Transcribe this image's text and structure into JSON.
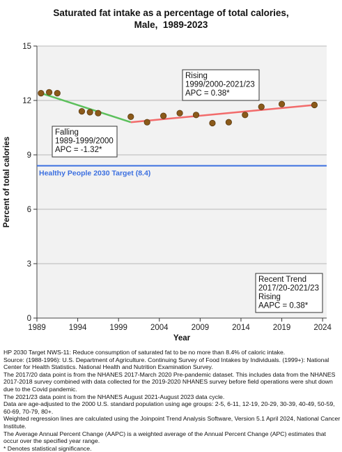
{
  "chart_data": {
    "type": "line",
    "title": [
      "Saturated fat intake as a percentage of total calories,",
      "Male,  1989-2023"
    ],
    "xlabel": "Year",
    "ylabel": "Percent of total calories",
    "xlim": [
      1989,
      2024.5
    ],
    "ylim": [
      0,
      15
    ],
    "xticks": [
      1989,
      1994,
      1999,
      2004,
      2009,
      2014,
      2019,
      2024
    ],
    "yticks": [
      0,
      3,
      6,
      9,
      12,
      15
    ],
    "grid": true,
    "points": [
      {
        "x": 1989.5,
        "y": 12.4
      },
      {
        "x": 1990.5,
        "y": 12.45
      },
      {
        "x": 1991.5,
        "y": 12.4
      },
      {
        "x": 1994.5,
        "y": 11.4
      },
      {
        "x": 1995.5,
        "y": 11.35
      },
      {
        "x": 1996.5,
        "y": 11.3
      },
      {
        "x": 2000.5,
        "y": 11.1
      },
      {
        "x": 2002.5,
        "y": 10.8
      },
      {
        "x": 2004.5,
        "y": 11.15
      },
      {
        "x": 2006.5,
        "y": 11.3
      },
      {
        "x": 2008.5,
        "y": 11.2
      },
      {
        "x": 2010.5,
        "y": 10.75
      },
      {
        "x": 2012.5,
        "y": 10.8
      },
      {
        "x": 2014.5,
        "y": 11.2
      },
      {
        "x": 2016.5,
        "y": 11.65
      },
      {
        "x": 2019,
        "y": 11.8
      },
      {
        "x": 2023,
        "y": 11.75
      }
    ],
    "trend_segments": [
      {
        "color": "#5cc05c",
        "points": [
          {
            "x": 1989.5,
            "y": 12.4
          },
          {
            "x": 2000.5,
            "y": 10.8
          }
        ]
      },
      {
        "color": "#f26b6b",
        "points": [
          {
            "x": 2000.5,
            "y": 10.8
          },
          {
            "x": 2023,
            "y": 11.75
          }
        ]
      }
    ],
    "target": {
      "value": 8.4,
      "label": "Healthy People 2030 Target (8.4)",
      "color": "#3b6fe0"
    },
    "annotations": [
      {
        "lines": [
          "Falling",
          "1989-1999/2000",
          "APC = -1.32*"
        ]
      },
      {
        "lines": [
          "Rising",
          "1999/2000-2021/23",
          "APC =  0.38*"
        ]
      },
      {
        "lines": [
          "Recent Trend",
          "2017/20-2021/23",
          "Rising",
          "AAPC =  0.38*"
        ]
      }
    ],
    "colors": {
      "plot_background": "#f2f2f2",
      "point_fill": "#8b5a1a",
      "point_stroke": "#5a3a10",
      "grid": "#b8b8b8"
    }
  },
  "footnotes": [
    "HP 2030 Target NWS-11: Reduce consumption of saturated fat to be no more than 8.4% of caloric intake.",
    "Source: (1988-1996): U.S. Department of Agriculture. Continuing Survey of Food Intakes by Individuals. (1999+): National Center for Health Statistics. National Health and Nutrition Examination Survey.",
    "The 2017/20 data point is from the NHANES 2017-March 2020 Pre-pandemic dataset. This includes data from the NHANES 2017-2018 survey combined with data collected for the 2019-2020 NHANES survey before field operations were shut down due to the Covid pandemic.",
    "The 2021/23 data point is from the NHANES August 2021-August 2023 data cycle.",
    "Data are age-adjusted to the 2000 U.S. standard population using age groups: 2-5, 6-11, 12-19, 20-29, 30-39, 40-49, 50-59, 60-69, 70-79, 80+.",
    "Weighted regression lines are calculated using the Joinpoint Trend Analysis Software, Version 5.1 April 2024, National Cancer Institute.",
    "The Average Annual Percent Change (AAPC) is a weighted average of the Annual Percent Change (APC) estimates that occur over the specified year range.",
    "* Denotes statistical significance."
  ]
}
